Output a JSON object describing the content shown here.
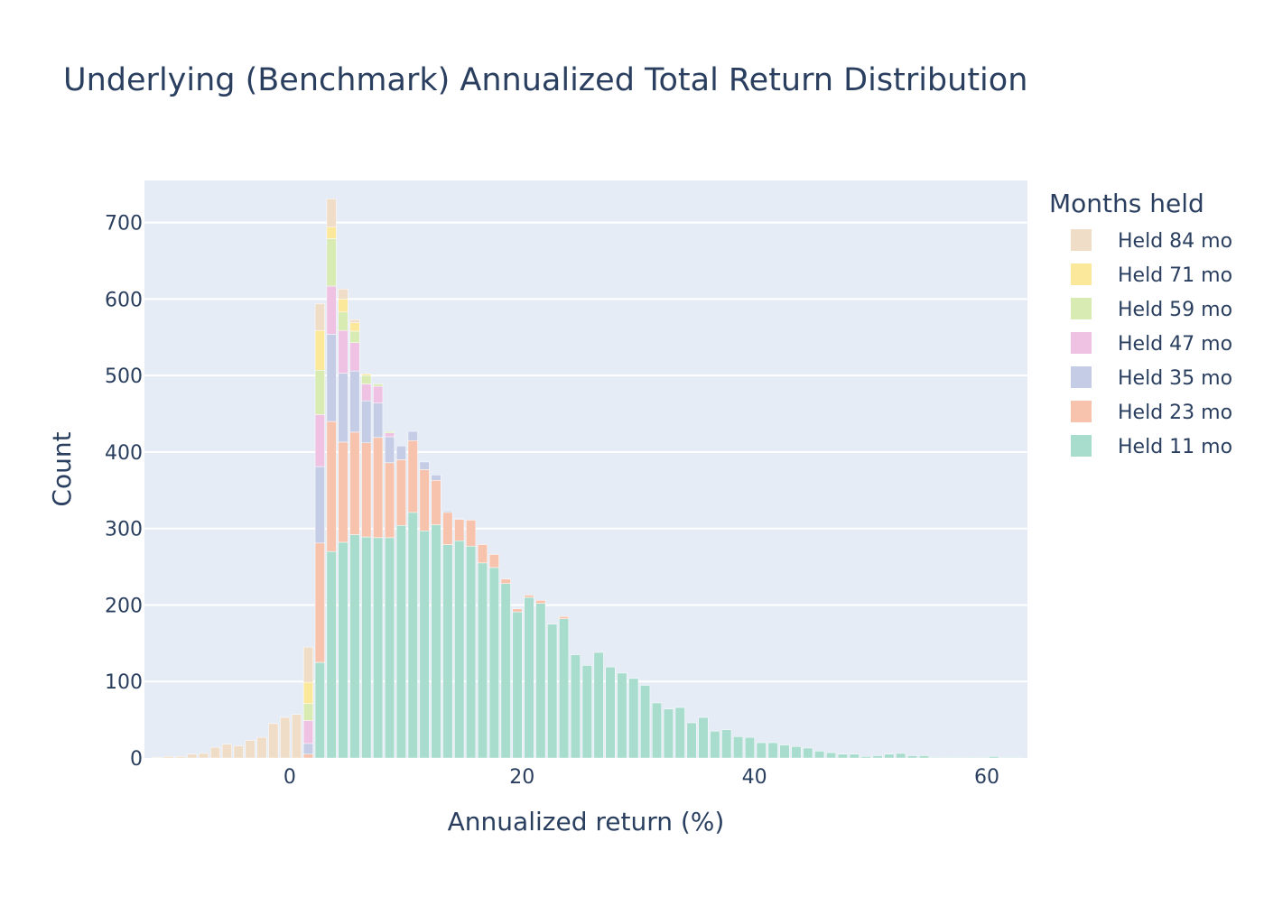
{
  "chart_data": {
    "type": "bar",
    "barmode": "stack",
    "title": "Underlying (Benchmark) Annualized Total Return Distribution",
    "xlabel": "Annualized return (%)",
    "ylabel": "Count",
    "xlim": [
      -12.5,
      63.5
    ],
    "ylim": [
      0,
      755
    ],
    "xticks": [
      0,
      20,
      40,
      60
    ],
    "yticks": [
      0,
      100,
      200,
      300,
      400,
      500,
      600,
      700
    ],
    "grid": true,
    "legend_title": "Months held",
    "legend_placement": "top-right",
    "series": [
      {
        "name": "Held 11 mo",
        "color": "#a8dccd",
        "points": [
          [
            2.6,
            125
          ],
          [
            3.6,
            270
          ],
          [
            4.6,
            282
          ],
          [
            5.6,
            292
          ],
          [
            6.6,
            289
          ],
          [
            7.6,
            288
          ],
          [
            8.6,
            288
          ],
          [
            9.6,
            304
          ],
          [
            10.6,
            321
          ],
          [
            11.6,
            297
          ],
          [
            12.6,
            305
          ],
          [
            13.6,
            279
          ],
          [
            14.6,
            284
          ],
          [
            15.6,
            277
          ],
          [
            16.6,
            255
          ],
          [
            17.6,
            249
          ],
          [
            18.6,
            228
          ],
          [
            19.6,
            191
          ],
          [
            20.6,
            210
          ],
          [
            21.6,
            202
          ],
          [
            22.6,
            175
          ],
          [
            23.6,
            182
          ],
          [
            24.6,
            135
          ],
          [
            25.6,
            121
          ],
          [
            26.6,
            138
          ],
          [
            27.6,
            119
          ],
          [
            28.6,
            111
          ],
          [
            29.6,
            104
          ],
          [
            30.6,
            95
          ],
          [
            31.6,
            72
          ],
          [
            32.6,
            64
          ],
          [
            33.6,
            66
          ],
          [
            34.6,
            46
          ],
          [
            35.6,
            53
          ],
          [
            36.6,
            35
          ],
          [
            37.6,
            37
          ],
          [
            38.6,
            28
          ],
          [
            39.6,
            27
          ],
          [
            40.6,
            20
          ],
          [
            41.6,
            20
          ],
          [
            42.6,
            17
          ],
          [
            43.6,
            15
          ],
          [
            44.6,
            13
          ],
          [
            45.6,
            9
          ],
          [
            46.6,
            7
          ],
          [
            47.6,
            5
          ],
          [
            48.6,
            5
          ],
          [
            49.6,
            2
          ],
          [
            50.6,
            3
          ],
          [
            51.6,
            5
          ],
          [
            52.6,
            6
          ],
          [
            53.6,
            3
          ],
          [
            54.6,
            3
          ],
          [
            55.6,
            1
          ],
          [
            56.6,
            1
          ],
          [
            57.6,
            1
          ],
          [
            58.6,
            1
          ],
          [
            59.6,
            1
          ],
          [
            60.6,
            2
          ],
          [
            61.6,
            1
          ],
          [
            62.6,
            1
          ]
        ]
      },
      {
        "name": "Held 23 mo",
        "color": "#f8c3ad",
        "points": [
          [
            1.6,
            5
          ],
          [
            2.6,
            156
          ],
          [
            3.6,
            170
          ],
          [
            4.6,
            131
          ],
          [
            5.6,
            134
          ],
          [
            6.6,
            123
          ],
          [
            7.6,
            131
          ],
          [
            8.6,
            98
          ],
          [
            9.6,
            86
          ],
          [
            10.6,
            94
          ],
          [
            11.6,
            80
          ],
          [
            12.6,
            58
          ],
          [
            13.6,
            42
          ],
          [
            14.6,
            28
          ],
          [
            15.6,
            34
          ],
          [
            16.6,
            24
          ],
          [
            17.6,
            17
          ],
          [
            18.6,
            6
          ],
          [
            19.6,
            4
          ],
          [
            20.6,
            3
          ],
          [
            21.6,
            4
          ],
          [
            23.6,
            3
          ]
        ]
      },
      {
        "name": "Held 35 mo",
        "color": "#c5cde6",
        "points": [
          [
            1.6,
            14
          ],
          [
            2.6,
            100
          ],
          [
            3.6,
            114
          ],
          [
            4.6,
            90
          ],
          [
            5.6,
            80
          ],
          [
            6.6,
            55
          ],
          [
            7.6,
            45
          ],
          [
            8.6,
            34
          ],
          [
            9.6,
            18
          ],
          [
            10.6,
            12
          ],
          [
            11.6,
            10
          ],
          [
            12.6,
            7
          ],
          [
            13.6,
            2
          ],
          [
            14.6,
            1
          ]
        ]
      },
      {
        "name": "Held 47 mo",
        "color": "#efc2e3",
        "points": [
          [
            1.6,
            30
          ],
          [
            2.6,
            68
          ],
          [
            3.6,
            63
          ],
          [
            4.6,
            56
          ],
          [
            5.6,
            37
          ],
          [
            6.6,
            22
          ],
          [
            7.6,
            22
          ],
          [
            8.6,
            5
          ]
        ]
      },
      {
        "name": "Held 59 mo",
        "color": "#d7ebb3",
        "points": [
          [
            1.6,
            22
          ],
          [
            2.6,
            58
          ],
          [
            3.6,
            62
          ],
          [
            4.6,
            24
          ],
          [
            5.6,
            15
          ],
          [
            6.6,
            11
          ],
          [
            7.6,
            3
          ],
          [
            8.6,
            2
          ]
        ]
      },
      {
        "name": "Held 71 mo",
        "color": "#fce89a",
        "points": [
          [
            1.6,
            28
          ],
          [
            2.6,
            52
          ],
          [
            3.6,
            15
          ],
          [
            4.6,
            17
          ],
          [
            5.6,
            11
          ],
          [
            6.6,
            2
          ]
        ]
      },
      {
        "name": "Held 84 mo",
        "color": "#f0ddc7",
        "points": [
          [
            -11.4,
            1
          ],
          [
            -10.4,
            2
          ],
          [
            -9.4,
            2
          ],
          [
            -8.4,
            5
          ],
          [
            -7.4,
            6
          ],
          [
            -6.4,
            14
          ],
          [
            -5.4,
            18
          ],
          [
            -4.4,
            16
          ],
          [
            -3.4,
            23
          ],
          [
            -2.4,
            27
          ],
          [
            -1.4,
            45
          ],
          [
            -0.4,
            53
          ],
          [
            0.6,
            57
          ],
          [
            1.6,
            46
          ],
          [
            2.6,
            35
          ],
          [
            3.6,
            37
          ],
          [
            4.6,
            13
          ],
          [
            5.6,
            4
          ]
        ]
      }
    ]
  }
}
